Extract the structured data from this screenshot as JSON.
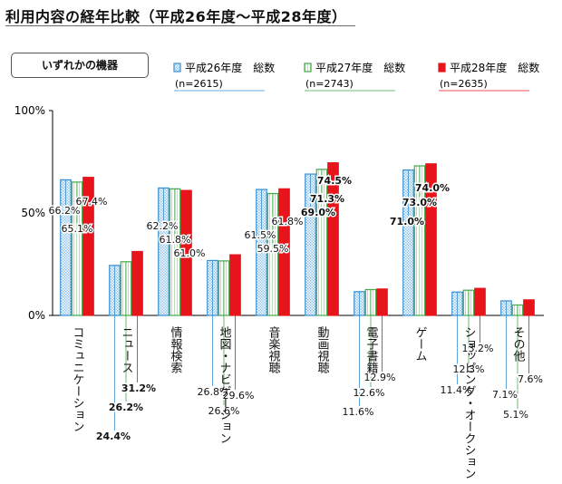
{
  "header": {
    "title": "利用内容の経年比較（平成26年度～平成28年度）",
    "device_label": "いずれかの機器"
  },
  "colors": {
    "h26": "#3a8fd0",
    "h27": "#44a84a",
    "h28": "#e8141c",
    "axis": "#000000"
  },
  "chart_data": {
    "type": "bar",
    "title": "利用内容の経年比較（平成26年度～平成28年度）",
    "ylim": [
      0,
      100
    ],
    "y_ticks": [
      "0%",
      "50%",
      "100%"
    ],
    "grid": false,
    "legend_position": "top-right",
    "categories": [
      "コミュニケーション",
      "ニュース",
      "情報検索",
      "地図・ナビゲーション",
      "音楽視聴",
      "動画視聴",
      "電子書籍",
      "ゲーム",
      "ショッピング・オークション",
      "その他"
    ],
    "series": [
      {
        "name": "平成26年度　総数",
        "sample": "(n=2615)",
        "values": [
          66.2,
          24.4,
          62.2,
          26.8,
          61.5,
          69.0,
          11.6,
          71.0,
          11.4,
          7.1
        ],
        "labels": [
          "66.2%",
          "24.4%",
          "62.2%",
          "26.8%",
          "61.5%",
          "69.0%",
          "11.6%",
          "71.0%",
          "11.4%",
          "7.1%"
        ]
      },
      {
        "name": "平成27年度　総数",
        "sample": "(n=2743)",
        "values": [
          65.1,
          26.2,
          61.8,
          26.6,
          59.5,
          71.3,
          12.6,
          73.0,
          12.3,
          5.1
        ],
        "labels": [
          "65.1%",
          "26.2%",
          "61.8%",
          "26.6%",
          "59.5%",
          "71.3%",
          "12.6%",
          "73.0%",
          "12.3%",
          "5.1%"
        ]
      },
      {
        "name": "平成28年度　総数",
        "sample": "(n=2635)",
        "values": [
          67.4,
          31.2,
          61.0,
          29.6,
          61.8,
          74.5,
          12.9,
          74.0,
          13.2,
          7.6
        ],
        "labels": [
          "67.4%",
          "31.2%",
          "61.0%",
          "29.6%",
          "61.8%",
          "74.5%",
          "12.9%",
          "74.0%",
          "13.2%",
          "7.6%"
        ]
      }
    ]
  }
}
